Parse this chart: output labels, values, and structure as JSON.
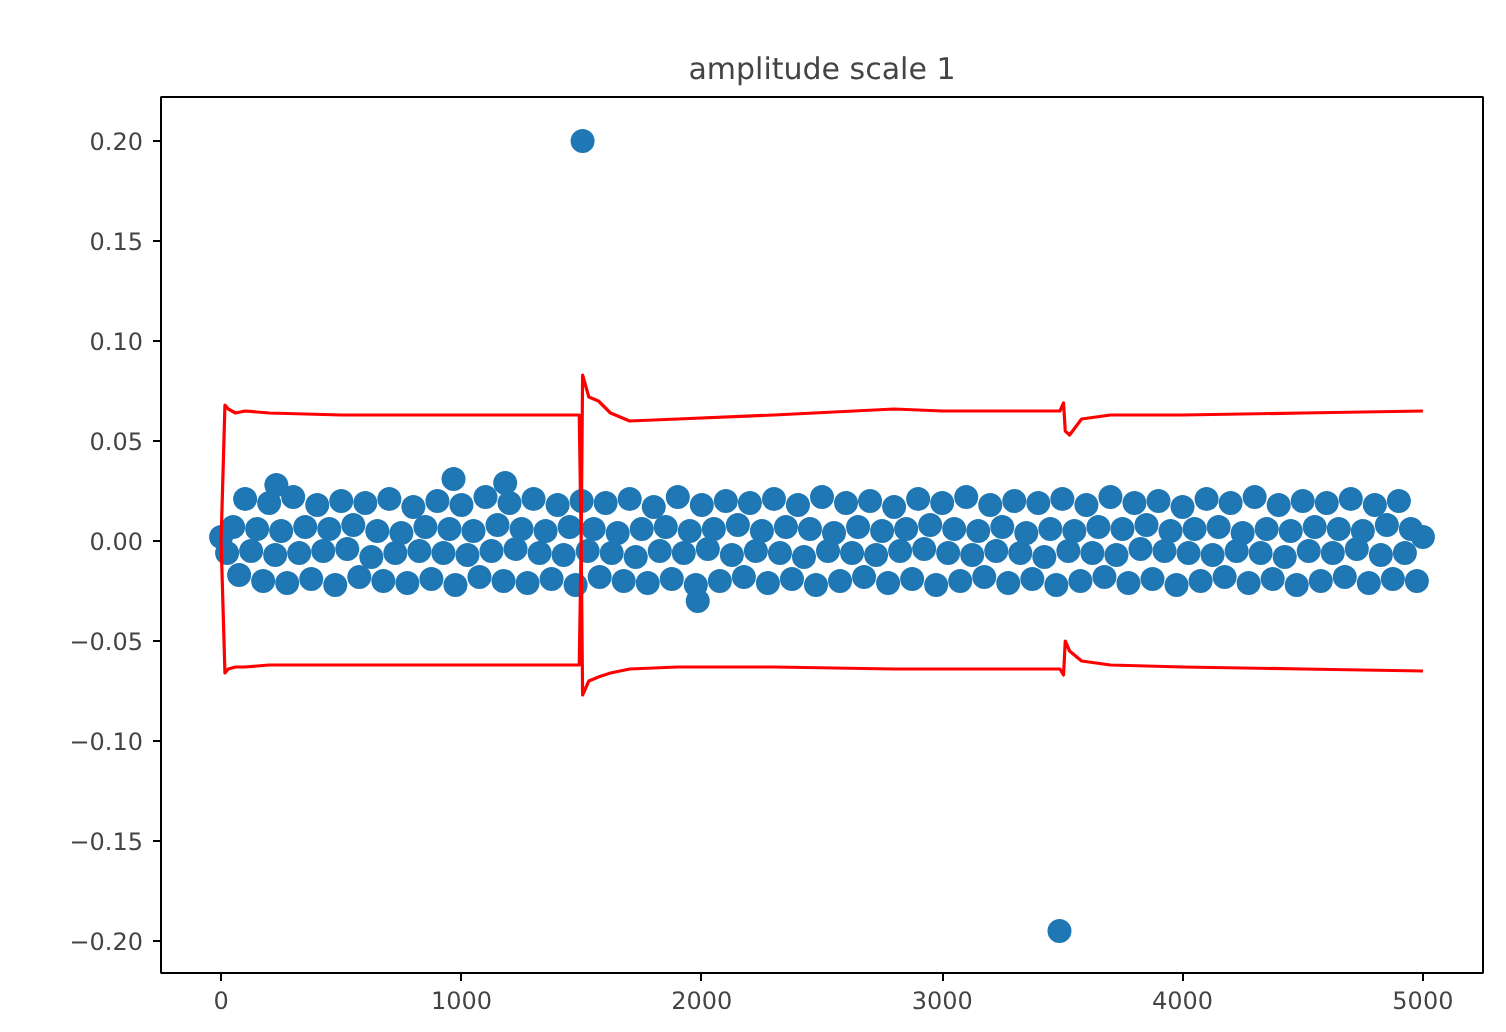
{
  "chart_data": {
    "type": "scatter",
    "title": "amplitude scale 1",
    "xlim": [
      -250,
      5250
    ],
    "ylim": [
      -0.216,
      0.222
    ],
    "xticks": [
      0,
      1000,
      2000,
      3000,
      4000,
      5000
    ],
    "yticks": [
      {
        "value": -0.2,
        "label": "−0.20"
      },
      {
        "value": -0.15,
        "label": "−0.15"
      },
      {
        "value": -0.1,
        "label": "−0.10"
      },
      {
        "value": -0.05,
        "label": "−0.05"
      },
      {
        "value": 0,
        "label": "0.00"
      },
      {
        "value": 0.05,
        "label": "0.05"
      },
      {
        "value": 0.1,
        "label": "0.10"
      },
      {
        "value": 0.15,
        "label": "0.15"
      },
      {
        "value": 0.2,
        "label": "0.20"
      }
    ],
    "grid": false,
    "marker": "circle",
    "series": [
      {
        "color": "#1f77b4",
        "x": [
          0,
          25,
          50,
          75,
          100,
          125,
          150,
          175,
          200,
          225,
          250,
          275,
          300,
          325,
          350,
          375,
          400,
          425,
          450,
          475,
          500,
          525,
          550,
          575,
          600,
          625,
          650,
          675,
          700,
          725,
          750,
          775,
          800,
          825,
          850,
          875,
          900,
          925,
          950,
          975,
          1000,
          1025,
          1050,
          1075,
          1100,
          1125,
          1150,
          1175,
          1200,
          1225,
          1250,
          1275,
          1300,
          1325,
          1350,
          1375,
          1400,
          1425,
          1450,
          1475,
          1500,
          1525,
          1550,
          1575,
          1600,
          1625,
          1650,
          1675,
          1700,
          1725,
          1750,
          1775,
          1800,
          1825,
          1850,
          1875,
          1900,
          1925,
          1950,
          1975,
          2000,
          2025,
          2050,
          2075,
          2100,
          2125,
          2150,
          2175,
          2200,
          2225,
          2250,
          2275,
          2300,
          2325,
          2350,
          2375,
          2400,
          2425,
          2450,
          2475,
          2500,
          2525,
          2550,
          2575,
          2600,
          2625,
          2650,
          2675,
          2700,
          2725,
          2750,
          2775,
          2800,
          2825,
          2850,
          2875,
          2900,
          2925,
          2950,
          2975,
          3000,
          3025,
          3050,
          3075,
          3100,
          3125,
          3150,
          3175,
          3200,
          3225,
          3250,
          3275,
          3300,
          3325,
          3350,
          3375,
          3400,
          3425,
          3450,
          3475,
          3500,
          3525,
          3550,
          3575,
          3600,
          3625,
          3650,
          3675,
          3700,
          3725,
          3750,
          3775,
          3800,
          3825,
          3850,
          3875,
          3900,
          3925,
          3950,
          3975,
          4000,
          4025,
          4050,
          4075,
          4100,
          4125,
          4150,
          4175,
          4200,
          4225,
          4250,
          4275,
          4300,
          4325,
          4350,
          4375,
          4400,
          4425,
          4450,
          4475,
          4500,
          4525,
          4550,
          4575,
          4600,
          4625,
          4650,
          4675,
          4700,
          4725,
          4750,
          4775,
          4800,
          4825,
          4850,
          4875,
          4900,
          4925,
          4950,
          4975,
          5000,
          230,
          967,
          1182,
          1983,
          1504,
          3488
        ],
        "values": [
          0.002,
          -0.006,
          0.007,
          -0.017,
          0.021,
          -0.005,
          0.006,
          -0.02,
          0.019,
          -0.007,
          0.005,
          -0.021,
          0.022,
          -0.006,
          0.007,
          -0.019,
          0.018,
          -0.005,
          0.006,
          -0.022,
          0.02,
          -0.004,
          0.008,
          -0.018,
          0.019,
          -0.008,
          0.005,
          -0.02,
          0.021,
          -0.006,
          0.004,
          -0.021,
          0.017,
          -0.005,
          0.007,
          -0.019,
          0.02,
          -0.006,
          0.006,
          -0.022,
          0.018,
          -0.007,
          0.005,
          -0.018,
          0.022,
          -0.005,
          0.008,
          -0.02,
          0.019,
          -0.004,
          0.006,
          -0.021,
          0.021,
          -0.006,
          0.005,
          -0.019,
          0.018,
          -0.007,
          0.007,
          -0.022,
          0.02,
          -0.005,
          0.006,
          -0.018,
          0.019,
          -0.006,
          0.004,
          -0.02,
          0.021,
          -0.008,
          0.006,
          -0.021,
          0.017,
          -0.005,
          0.007,
          -0.019,
          0.022,
          -0.006,
          0.005,
          -0.022,
          0.018,
          -0.004,
          0.006,
          -0.02,
          0.02,
          -0.007,
          0.008,
          -0.018,
          0.019,
          -0.005,
          0.005,
          -0.021,
          0.021,
          -0.006,
          0.007,
          -0.019,
          0.018,
          -0.008,
          0.006,
          -0.022,
          0.022,
          -0.005,
          0.004,
          -0.02,
          0.019,
          -0.006,
          0.007,
          -0.018,
          0.02,
          -0.007,
          0.005,
          -0.021,
          0.017,
          -0.005,
          0.006,
          -0.019,
          0.021,
          -0.004,
          0.008,
          -0.022,
          0.019,
          -0.006,
          0.006,
          -0.02,
          0.022,
          -0.007,
          0.005,
          -0.018,
          0.018,
          -0.005,
          0.007,
          -0.021,
          0.02,
          -0.006,
          0.004,
          -0.019,
          0.019,
          -0.008,
          0.006,
          -0.022,
          0.021,
          -0.005,
          0.005,
          -0.02,
          0.018,
          -0.006,
          0.007,
          -0.018,
          0.022,
          -0.007,
          0.006,
          -0.021,
          0.019,
          -0.004,
          0.008,
          -0.019,
          0.02,
          -0.005,
          0.005,
          -0.022,
          0.017,
          -0.006,
          0.006,
          -0.02,
          0.021,
          -0.007,
          0.007,
          -0.018,
          0.019,
          -0.005,
          0.004,
          -0.021,
          0.022,
          -0.006,
          0.006,
          -0.019,
          0.018,
          -0.008,
          0.005,
          -0.022,
          0.02,
          -0.005,
          0.007,
          -0.02,
          0.019,
          -0.006,
          0.006,
          -0.018,
          0.021,
          -0.004,
          0.005,
          -0.021,
          0.018,
          -0.007,
          0.008,
          -0.019,
          0.02,
          -0.006,
          0.006,
          -0.02,
          0.002,
          0.028,
          0.031,
          0.029,
          -0.03,
          0.2,
          -0.195
        ]
      },
      {
        "type": "line",
        "color": "#ff0000",
        "marker": "none",
        "x": [
          0,
          16,
          30,
          60,
          100,
          200,
          500,
          1000,
          1490,
          1498,
          1504,
          1530,
          1570,
          1620,
          1700,
          1900,
          2300,
          2800,
          3000,
          3490,
          3505,
          3512,
          3530,
          3580,
          3700,
          4000,
          4500,
          5000,
          null,
          0,
          16,
          30,
          60,
          100,
          200,
          500,
          1000,
          1490,
          1498,
          1504,
          1530,
          1570,
          1620,
          1700,
          1900,
          2300,
          2800,
          3000,
          3490,
          3505,
          3512,
          3530,
          3580,
          3700,
          4000,
          4500,
          5000
        ],
        "values": [
          0,
          0.068,
          0.066,
          0.064,
          0.065,
          0.064,
          0.063,
          0.063,
          0.063,
          0,
          0.083,
          0.072,
          0.07,
          0.064,
          0.06,
          0.061,
          0.063,
          0.066,
          0.065,
          0.065,
          0.069,
          0.055,
          0.053,
          0.061,
          0.063,
          0.063,
          0.064,
          0.065,
          null,
          0,
          -0.066,
          -0.064,
          -0.063,
          -0.063,
          -0.062,
          -0.062,
          -0.062,
          -0.062,
          0,
          -0.077,
          -0.07,
          -0.068,
          -0.066,
          -0.064,
          -0.063,
          -0.063,
          -0.064,
          -0.064,
          -0.064,
          -0.067,
          -0.05,
          -0.055,
          -0.06,
          -0.062,
          -0.063,
          -0.064,
          -0.065
        ]
      }
    ]
  }
}
